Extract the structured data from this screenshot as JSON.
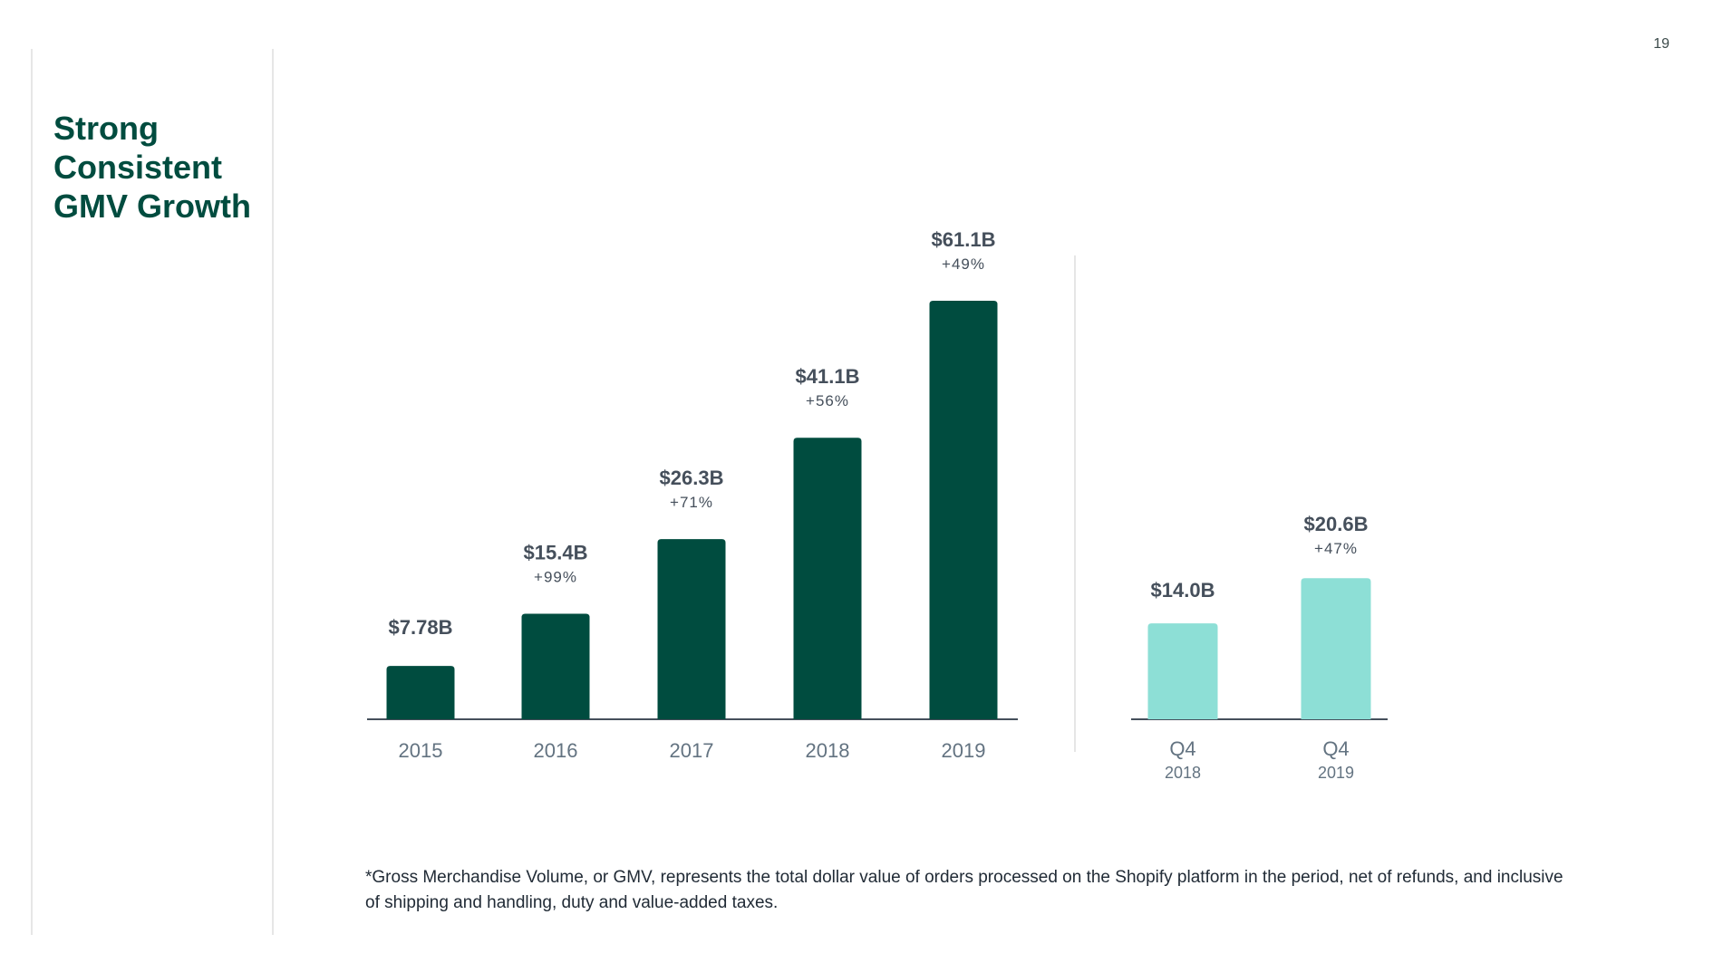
{
  "page_number": "19",
  "title_lines": [
    "Strong",
    "Consistent",
    "GMV Growth"
  ],
  "colors": {
    "title": "#004c3f",
    "annual_bar": "#004c3f",
    "quarterly_bar": "#8ddfd6",
    "axis": "#454f5b",
    "divider": "#e6e6e6"
  },
  "chart_data": [
    {
      "type": "bar",
      "categories": [
        "2015",
        "2016",
        "2017",
        "2018",
        "2019"
      ],
      "values": [
        7.78,
        15.4,
        26.3,
        41.1,
        61.1
      ],
      "value_labels": [
        "$7.78B",
        "$15.4B",
        "$26.3B",
        "$41.1B",
        "$61.1B"
      ],
      "growth_labels": [
        "",
        "+99%",
        "+71%",
        "+56%",
        "+49%"
      ],
      "ylim": [
        0,
        61.1
      ],
      "grid": false
    },
    {
      "type": "bar",
      "categories": [
        "Q4",
        "Q4"
      ],
      "category_sublabels": [
        "2018",
        "2019"
      ],
      "values": [
        14.0,
        20.6
      ],
      "value_labels": [
        "$14.0B",
        "$20.6B"
      ],
      "growth_labels": [
        "",
        "+47%"
      ],
      "ylim": [
        0,
        30.2
      ],
      "grid": false
    }
  ],
  "footnote": "*Gross Merchandise Volume, or GMV, represents the total dollar value of orders processed on the Shopify platform in the period, net of refunds, and inclusive of shipping and handling, duty and value-added taxes."
}
